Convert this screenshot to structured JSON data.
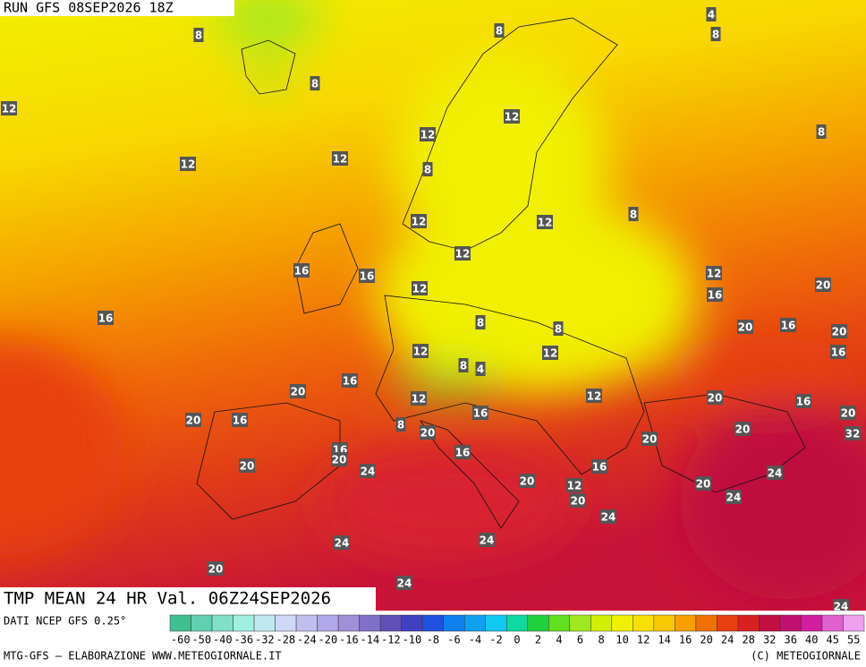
{
  "header": {
    "run": "RUN GFS 08SEP2026 18Z"
  },
  "map": {
    "labels": [
      8,
      8,
      12,
      12,
      12,
      12,
      8,
      12,
      8,
      4,
      8,
      8,
      8,
      12,
      12,
      12,
      16,
      16,
      12,
      16,
      12,
      16,
      20,
      20,
      16,
      20,
      16,
      8,
      8,
      12,
      12,
      8,
      4,
      12,
      12,
      20,
      16,
      20,
      16,
      20,
      20,
      16,
      16,
      8,
      20,
      20,
      20,
      32,
      16,
      16,
      20,
      24,
      20,
      16,
      24,
      20,
      12,
      20,
      24,
      20,
      24,
      24,
      24,
      20,
      24,
      24
    ]
  },
  "footer": {
    "title": "TMP MEAN 24 HR Val. 06Z24SEP2026",
    "source": "DATI NCEP GFS 0.25°",
    "credit": "MTG-GFS — ELABORAZIONE WWW.METEOGIORNALE.IT",
    "copyright": "(C) METEOGIORNALE"
  },
  "scale": {
    "labels": [
      -60,
      -50,
      -40,
      -36,
      -32,
      -28,
      -24,
      -20,
      -16,
      -14,
      -12,
      -10,
      -8,
      -6,
      -4,
      -2,
      0,
      2,
      4,
      6,
      8,
      10,
      12,
      14,
      16,
      20,
      24,
      28,
      32,
      36,
      40,
      45,
      55
    ],
    "colors": [
      "#40c090",
      "#60d0b0",
      "#80e0c8",
      "#a0f0e0",
      "#c0e8f0",
      "#d0d8f8",
      "#c0c0f0",
      "#b0a8e8",
      "#a090d8",
      "#8070c8",
      "#6050b8",
      "#4040c0",
      "#2050e0",
      "#1080f0",
      "#10a0f0",
      "#10c8f0",
      "#10d8a0",
      "#20d040",
      "#60e020",
      "#a0e820",
      "#d0f000",
      "#f0f000",
      "#f8e000",
      "#f8c800",
      "#f8a000",
      "#f07000",
      "#e84010",
      "#d82020",
      "#c01040",
      "#c01070",
      "#d020a0",
      "#e060d0",
      "#f0a0f0"
    ]
  }
}
